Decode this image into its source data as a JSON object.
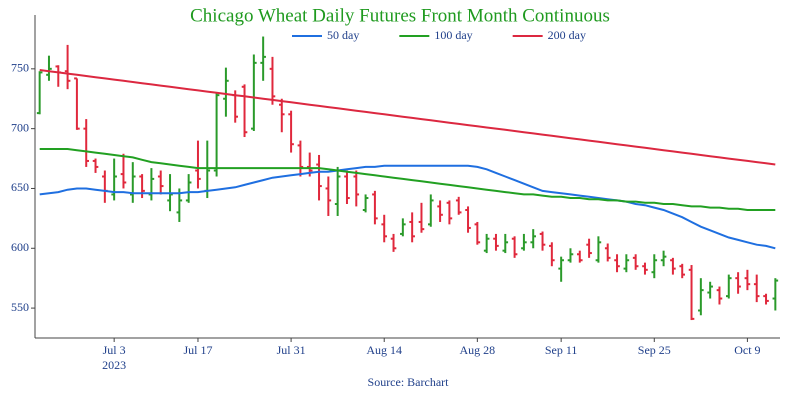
{
  "chart_data": {
    "type": "ohlc",
    "title": "Chicago Wheat Daily Futures Front Month Continuous",
    "source": "Source: Barchart",
    "x": [
      "2023-06-21",
      "2023-06-22",
      "2023-06-23",
      "2023-06-26",
      "2023-06-27",
      "2023-06-28",
      "2023-06-29",
      "2023-06-30",
      "2023-07-03",
      "2023-07-05",
      "2023-07-06",
      "2023-07-07",
      "2023-07-10",
      "2023-07-11",
      "2023-07-12",
      "2023-07-13",
      "2023-07-14",
      "2023-07-17",
      "2023-07-18",
      "2023-07-19",
      "2023-07-20",
      "2023-07-21",
      "2023-07-24",
      "2023-07-25",
      "2023-07-26",
      "2023-07-27",
      "2023-07-28",
      "2023-07-31",
      "2023-08-01",
      "2023-08-02",
      "2023-08-03",
      "2023-08-04",
      "2023-08-07",
      "2023-08-08",
      "2023-08-09",
      "2023-08-10",
      "2023-08-11",
      "2023-08-14",
      "2023-08-15",
      "2023-08-16",
      "2023-08-17",
      "2023-08-18",
      "2023-08-21",
      "2023-08-22",
      "2023-08-23",
      "2023-08-24",
      "2023-08-25",
      "2023-08-28",
      "2023-08-29",
      "2023-08-30",
      "2023-08-31",
      "2023-09-01",
      "2023-09-05",
      "2023-09-06",
      "2023-09-07",
      "2023-09-08",
      "2023-09-11",
      "2023-09-12",
      "2023-09-13",
      "2023-09-14",
      "2023-09-15",
      "2023-09-18",
      "2023-09-19",
      "2023-09-20",
      "2023-09-21",
      "2023-09-22",
      "2023-09-25",
      "2023-09-26",
      "2023-09-27",
      "2023-09-28",
      "2023-09-29",
      "2023-10-02",
      "2023-10-03",
      "2023-10-04",
      "2023-10-05",
      "2023-10-06",
      "2023-10-09",
      "2023-10-10",
      "2023-10-11",
      "2023-10-12"
    ],
    "open": [
      713,
      745,
      752,
      748,
      742,
      700,
      673,
      660,
      645,
      662,
      645,
      660,
      645,
      660,
      640,
      630,
      640,
      665,
      648,
      665,
      725,
      728,
      735,
      700,
      755,
      750,
      720,
      712,
      686,
      668,
      670,
      650,
      637,
      660,
      660,
      632,
      645,
      620,
      608,
      612,
      622,
      622,
      620,
      635,
      638,
      640,
      632,
      620,
      598,
      608,
      598,
      608,
      600,
      605,
      612,
      602,
      583,
      590,
      595,
      603,
      590,
      600,
      590,
      583,
      592,
      585,
      580,
      590,
      590,
      585,
      582,
      548,
      563,
      565,
      560,
      575,
      575,
      570,
      560,
      558
    ],
    "high": [
      748,
      761,
      753,
      770,
      742,
      708,
      675,
      665,
      675,
      679,
      672,
      662,
      667,
      665,
      662,
      650,
      662,
      690,
      690,
      730,
      751,
      732,
      737,
      762,
      777,
      760,
      725,
      715,
      690,
      680,
      678,
      660,
      668,
      665,
      665,
      645,
      648,
      628,
      612,
      625,
      630,
      638,
      645,
      640,
      640,
      643,
      635,
      622,
      612,
      612,
      612,
      610,
      612,
      616,
      614,
      605,
      593,
      600,
      598,
      608,
      610,
      604,
      595,
      595,
      595,
      588,
      595,
      598,
      592,
      587,
      586,
      575,
      572,
      568,
      578,
      580,
      582,
      578,
      562,
      575
    ],
    "low": [
      712,
      740,
      735,
      733,
      699,
      668,
      663,
      638,
      640,
      650,
      638,
      642,
      640,
      645,
      631,
      622,
      638,
      650,
      642,
      660,
      710,
      705,
      693,
      698,
      740,
      720,
      697,
      680,
      660,
      660,
      640,
      627,
      627,
      637,
      635,
      630,
      620,
      605,
      597,
      610,
      605,
      613,
      618,
      622,
      620,
      628,
      613,
      603,
      596,
      598,
      596,
      592,
      598,
      600,
      598,
      585,
      572,
      588,
      588,
      592,
      588,
      589,
      580,
      580,
      582,
      578,
      575,
      585,
      578,
      575,
      540,
      544,
      558,
      553,
      558,
      562,
      565,
      555,
      553,
      548
    ],
    "close": [
      747,
      750,
      747,
      740,
      700,
      673,
      668,
      648,
      660,
      655,
      660,
      648,
      658,
      652,
      645,
      640,
      655,
      658,
      665,
      728,
      740,
      710,
      697,
      755,
      760,
      727,
      712,
      687,
      668,
      665,
      652,
      640,
      660,
      642,
      645,
      642,
      625,
      610,
      600,
      620,
      610,
      616,
      640,
      628,
      625,
      630,
      617,
      605,
      608,
      602,
      605,
      595,
      605,
      610,
      603,
      590,
      590,
      595,
      590,
      596,
      605,
      592,
      585,
      590,
      585,
      582,
      590,
      593,
      583,
      578,
      541,
      565,
      568,
      558,
      575,
      568,
      570,
      560,
      556,
      573
    ],
    "increasing_color": "#2a9a2a",
    "decreasing_color": "#e0283c",
    "series": [
      {
        "name": "50 day",
        "color": "#1f6fe0",
        "values": [
          645,
          646,
          647,
          649,
          650,
          650,
          649,
          648,
          647,
          647,
          646,
          646,
          646,
          646,
          646,
          646,
          647,
          647,
          648,
          649,
          650,
          651,
          653,
          655,
          657,
          659,
          660,
          661,
          662,
          663,
          664,
          664,
          665,
          666,
          667,
          668,
          668,
          669,
          669,
          669,
          669,
          669,
          669,
          669,
          669,
          669,
          669,
          668,
          666,
          663,
          660,
          657,
          654,
          651,
          648,
          647,
          646,
          645,
          644,
          643,
          642,
          641,
          640,
          639,
          637,
          636,
          634,
          632,
          629,
          626,
          622,
          618,
          615,
          612,
          609,
          607,
          605,
          603,
          602,
          600
        ]
      },
      {
        "name": "100 day",
        "color": "#22a022",
        "values": [
          683,
          683,
          683,
          683,
          682,
          681,
          680,
          679,
          678,
          677,
          676,
          674,
          672,
          671,
          670,
          669,
          668,
          667,
          667,
          667,
          667,
          667,
          667,
          667,
          667,
          667,
          667,
          667,
          667,
          667,
          667,
          666,
          665,
          664,
          663,
          662,
          661,
          660,
          659,
          658,
          657,
          656,
          655,
          654,
          653,
          652,
          651,
          650,
          649,
          648,
          647,
          646,
          645,
          645,
          644,
          643,
          643,
          642,
          642,
          641,
          641,
          640,
          640,
          639,
          639,
          638,
          638,
          637,
          637,
          636,
          635,
          635,
          634,
          634,
          633,
          633,
          632,
          632,
          632,
          632
        ]
      },
      {
        "name": "200 day",
        "color": "#dc2840",
        "values": [
          749,
          748,
          747,
          746,
          745,
          744,
          743,
          742,
          741,
          740,
          739,
          738,
          737,
          736,
          735,
          734,
          733,
          732,
          731,
          730,
          729,
          728,
          727,
          726,
          725,
          724,
          723,
          722,
          721,
          720,
          719,
          718,
          717,
          716,
          715,
          714,
          713,
          712,
          711,
          710,
          709,
          708,
          707,
          706,
          705,
          704,
          703,
          702,
          701,
          700,
          699,
          698,
          697,
          696,
          695,
          694,
          693,
          692,
          691,
          690,
          689,
          688,
          687,
          686,
          685,
          684,
          683,
          682,
          681,
          680,
          679,
          678,
          677,
          676,
          675,
          674,
          673,
          672,
          671,
          670
        ]
      }
    ],
    "xticks": [
      {
        "value": "2023-07-03",
        "label": "Jul 3\n2023"
      },
      {
        "value": "2023-07-17",
        "label": "Jul 17"
      },
      {
        "value": "2023-07-31",
        "label": "Jul 31"
      },
      {
        "value": "2023-08-14",
        "label": "Aug 14"
      },
      {
        "value": "2023-08-28",
        "label": "Aug 28"
      },
      {
        "value": "2023-09-11",
        "label": "Sep 11"
      },
      {
        "value": "2023-09-25",
        "label": "Sep 25"
      },
      {
        "value": "2023-10-09",
        "label": "Oct 9"
      }
    ],
    "ylim": [
      525,
      795
    ],
    "yticks": [
      550,
      600,
      650,
      700,
      750
    ],
    "grid": false,
    "legend": "top"
  }
}
